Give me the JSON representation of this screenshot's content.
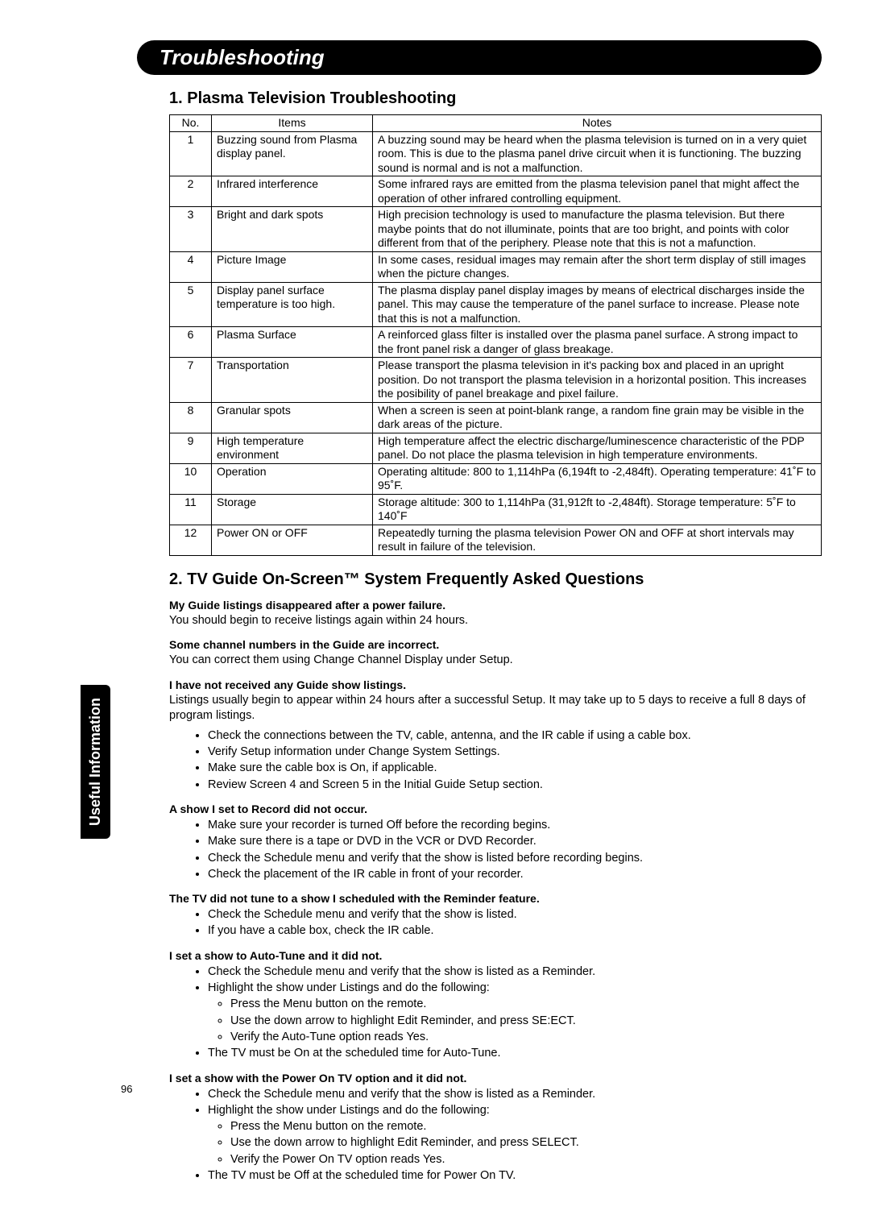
{
  "header": {
    "title": "Troubleshooting"
  },
  "side_tab": "Useful Information",
  "page_number": "96",
  "section1": {
    "title": "1. Plasma Television Troubleshooting",
    "columns": [
      "No.",
      "Items",
      "Notes"
    ],
    "rows": [
      {
        "no": "1",
        "item": "Buzzing sound from Plasma display panel.",
        "note": "A buzzing sound may be heard when the plasma television is turned on in a very quiet room. This is due to the plasma panel drive circuit when it is functioning. The buzzing sound is normal and is not a malfunction."
      },
      {
        "no": "2",
        "item": "Infrared interference",
        "note": "Some infrared rays are emitted from the plasma television panel that might affect the operation of other infrared controlling equipment."
      },
      {
        "no": "3",
        "item": "Bright and dark spots",
        "note": "High precision technology is used to manufacture the plasma television. But there maybe points that do not illuminate, points that are too bright, and points with color different from that of the periphery. Please note that this is not a mafunction."
      },
      {
        "no": "4",
        "item": "Picture Image",
        "note": "In some cases, residual images may remain after the short term display of still images when the picture changes."
      },
      {
        "no": "5",
        "item": "Display panel surface temperature is too high.",
        "note": "The plasma display panel display images by means of electrical discharges inside the panel. This may cause the temperature of the panel surface to increase. Please note that this is not a malfunction."
      },
      {
        "no": "6",
        "item": "Plasma Surface",
        "note": "A reinforced  glass filter is installed over the plasma panel surface. A strong impact to the front panel risk a danger of glass breakage."
      },
      {
        "no": "7",
        "item": "Transportation",
        "note": "Please transport the plasma television in it's packing box and placed in an upright position. Do not transport the plasma television in a horizontal position. This increases the posibility of panel breakage and pixel failure."
      },
      {
        "no": "8",
        "item": "Granular spots",
        "note": "When a screen is seen at point-blank range, a random fine grain may be visible in the dark areas of the picture."
      },
      {
        "no": "9",
        "item": "High temperature environment",
        "note": "High temperature affect the electric discharge/luminescence characteristic of the PDP panel. Do not place the plasma television in high temperature environments."
      },
      {
        "no": "10",
        "item": "Operation",
        "note": "Operating altitude:  800 to 1,114hPa (6,194ft to -2,484ft).  Operating temperature:  41˚F to 95˚F."
      },
      {
        "no": "11",
        "item": "Storage",
        "note": "Storage altitude:  300 to 1,114hPa (31,912ft to -2,484ft).  Storage temperature:  5˚F to 140˚F"
      },
      {
        "no": "12",
        "item": "Power ON or OFF",
        "note": "Repeatedly turning the plasma television Power ON and OFF at short intervals may result in failure of the television."
      }
    ]
  },
  "section2": {
    "title": "2. TV Guide On-Screen™ System Frequently Asked Questions",
    "faqs": [
      {
        "q": "My Guide listings disappeared after a power failure.",
        "a": "You should begin to receive listings again within 24 hours."
      },
      {
        "q": "Some channel numbers in the Guide are incorrect.",
        "a": "You can correct them using Change Channel Display under Setup."
      },
      {
        "q": "I have not received any Guide show listings.",
        "a": "Listings usually begin to appear within 24 hours after a successful Setup.  It may take up to 5 days to receive a full 8 days of program listings.",
        "bullets": [
          "Check the connections between the TV, cable, antenna, and the IR cable if using a cable box.",
          "Verify Setup information under Change System Settings.",
          "Make sure the cable box is On, if applicable.",
          "Review Screen 4 and Screen 5 in the Initial Guide Setup section."
        ]
      },
      {
        "q": "A show I set to Record did not occur.",
        "bullets": [
          "Make sure your recorder is turned Off before the recording begins.",
          "Make sure there is a tape or DVD in the VCR or DVD Recorder.",
          "Check the Schedule menu and verify that the show is listed before recording begins.",
          "Check the placement of the IR cable in front of your recorder."
        ]
      },
      {
        "q": "The TV did not tune to a show I scheduled with the Reminder feature.",
        "bullets": [
          "Check the Schedule menu and verify that the show is listed.",
          "If you have a cable box, check the IR cable."
        ]
      },
      {
        "q": "I set a show to Auto-Tune and it did not.",
        "bullets": [
          "Check the Schedule menu and verify that the show is listed as a Reminder.",
          {
            "text": "Highlight the show under Listings and do the following:",
            "sub": [
              "Press the Menu button on the remote.",
              "Use the down arrow to highlight Edit Reminder, and press SE:ECT.",
              "Verify the Auto-Tune option reads Yes."
            ]
          },
          "The TV must be On at the scheduled time for Auto-Tune."
        ]
      },
      {
        "q": "I set a show with the Power On TV option and it did not.",
        "bullets": [
          "Check the Schedule menu and verify that the show is listed as a Reminder.",
          {
            "text": "Highlight the show under Listings and do the following:",
            "sub": [
              "Press the Menu button on the remote.",
              "Use the down arrow to highlight Edit Reminder, and press SELECT.",
              "Verify the Power On TV option reads Yes."
            ]
          },
          "The TV must be Off at the scheduled time for Power On TV."
        ]
      }
    ]
  }
}
